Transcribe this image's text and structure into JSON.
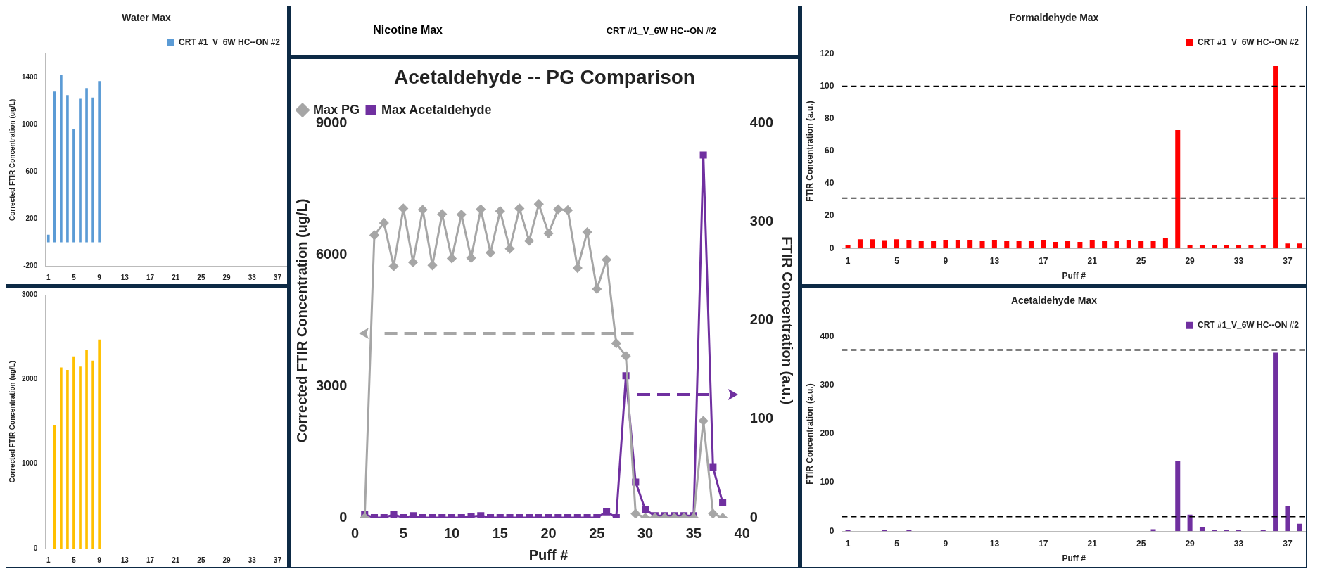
{
  "chart_data": [
    {
      "type": "bar",
      "title": "Water Max",
      "ylabel": "Corrected FTIR Concentration (ug/L)",
      "legend": "top right",
      "categories": [
        "1",
        null,
        null,
        null,
        "5",
        null,
        null,
        null,
        "9",
        null,
        null,
        null,
        "13",
        null,
        null,
        null,
        "17",
        null,
        null,
        null,
        "21",
        null,
        null,
        null,
        "25",
        null,
        null,
        null,
        "29",
        null,
        null,
        null,
        "33",
        null,
        null,
        null,
        "37",
        null
      ],
      "series": [
        {
          "name": "CRT #1_V_6W HC--ON #2",
          "color": "#5b9bd5",
          "values": [
            64,
            1280,
            1420,
            1250,
            960,
            1220,
            1310,
            1230,
            1370,
            null,
            null,
            null,
            null,
            null,
            null,
            null,
            null,
            null,
            null,
            null,
            null,
            null,
            null,
            null,
            null,
            null,
            null,
            null,
            null,
            null,
            null,
            null,
            null,
            null,
            null,
            null,
            null,
            null
          ]
        }
      ],
      "ylim": [
        -200,
        1600
      ],
      "yticks": [
        -200,
        200,
        600,
        1000,
        1400
      ]
    },
    {
      "type": "bar",
      "ylabel": "Corrected FTIR Concentration (ug/L)",
      "categories": [
        "1",
        null,
        null,
        null,
        "5",
        null,
        null,
        null,
        "9",
        null,
        null,
        null,
        "13",
        null,
        null,
        null,
        "17",
        null,
        null,
        null,
        "21",
        null,
        null,
        null,
        "25",
        null,
        null,
        null,
        "29",
        null,
        null,
        null,
        "33",
        null,
        null,
        null,
        "37",
        null
      ],
      "series": [
        {
          "color": "#ffc000",
          "values": [
            0,
            1460,
            2140,
            2110,
            2270,
            2150,
            2350,
            2220,
            2470,
            null,
            null,
            null,
            null,
            null,
            null,
            null,
            null,
            null,
            null,
            null,
            null,
            null,
            null,
            null,
            null,
            null,
            null,
            null,
            null,
            null,
            null,
            null,
            null,
            null,
            null,
            null,
            null,
            null
          ]
        }
      ],
      "ylim": [
        0,
        3000
      ],
      "yticks": [
        0,
        1000,
        2000,
        3000
      ]
    },
    {
      "type": "other",
      "title": "Nicotine Max",
      "annotations": [
        "CRT #1_V_6W HC--ON #2"
      ]
    },
    {
      "type": "line",
      "title": "Acetaldehyde -- PG Comparison",
      "xlabel": "Puff #",
      "ylabel": "Corrected FTIR Concentration (ug/L)",
      "y2label": "FTIR Concentration (a.u.)",
      "legend": "top left",
      "x": [
        1,
        2,
        3,
        4,
        5,
        6,
        7,
        8,
        9,
        10,
        11,
        12,
        13,
        14,
        15,
        16,
        17,
        18,
        19,
        20,
        21,
        22,
        23,
        24,
        25,
        26,
        27,
        28,
        29,
        30,
        31,
        32,
        33,
        34,
        35,
        36,
        37,
        38
      ],
      "series": [
        {
          "name": "Max PG",
          "color": "#a6a6a6",
          "marker": "diamond",
          "values": [
            0,
            6450,
            6730,
            5740,
            7060,
            5830,
            7030,
            5760,
            6930,
            5920,
            6920,
            5930,
            7040,
            6050,
            7000,
            6140,
            7060,
            6320,
            7160,
            6490,
            7040,
            7020,
            5700,
            6520,
            5220,
            5890,
            3980,
            3690,
            90,
            0,
            0,
            0,
            0,
            0,
            0,
            2210,
            90,
            0
          ]
        },
        {
          "name": "Max Acetaldehyde",
          "color": "#7030a0",
          "marker": "square",
          "axis": "y2",
          "values": [
            3,
            0,
            0,
            3,
            0,
            2,
            0,
            0,
            0,
            0,
            0,
            1,
            2,
            0,
            0,
            0,
            0,
            0,
            0,
            0,
            0,
            0,
            0,
            0,
            0,
            6,
            0,
            144,
            36,
            8,
            2,
            2,
            2,
            2,
            2,
            368,
            51,
            15
          ]
        }
      ],
      "xlim": [
        0,
        40
      ],
      "xticks": [
        0,
        5,
        10,
        15,
        20,
        25,
        30,
        35,
        40
      ],
      "ylim": [
        0,
        9000
      ],
      "yticks": [
        0,
        3000,
        6000,
        9000
      ],
      "y2lim": [
        0,
        400
      ],
      "y2ticks": [
        0,
        100,
        200,
        300,
        400
      ]
    },
    {
      "type": "bar",
      "title": "Formaldehyde Max",
      "xlabel": "Puff #",
      "ylabel": "FTIR Concentration (a.u.)",
      "legend": "top right",
      "categories": [
        "1",
        null,
        null,
        null,
        "5",
        null,
        null,
        null,
        "9",
        null,
        null,
        null,
        "13",
        null,
        null,
        null,
        "17",
        null,
        null,
        null,
        "21",
        null,
        null,
        null,
        "25",
        null,
        null,
        null,
        "29",
        null,
        null,
        null,
        "33",
        null,
        null,
        null,
        "37",
        null
      ],
      "series": [
        {
          "name": "CRT #1_V_6W HC--ON #2",
          "color": "#ff0000",
          "values": [
            2,
            5.6,
            5.6,
            5.1,
            5.6,
            5.3,
            4.6,
            4.6,
            5.3,
            5.3,
            5.3,
            4.8,
            5.3,
            4.4,
            4.8,
            4.4,
            5.3,
            4.0,
            4.8,
            4.0,
            5.3,
            4.4,
            4.4,
            5.3,
            4.4,
            4.4,
            6.3,
            73,
            2,
            2,
            2,
            2,
            2,
            2,
            2,
            112.5,
            3,
            3
          ]
        }
      ],
      "ylim": [
        0,
        120
      ],
      "yticks": [
        0,
        20,
        40,
        60,
        80,
        100,
        120
      ],
      "ref_lines": [
        {
          "axis": "y",
          "value": 100,
          "color": "#000000",
          "line_style": "dashed"
        },
        {
          "axis": "y",
          "value": 31,
          "color": "#404040",
          "line_style": "dashed"
        }
      ]
    },
    {
      "type": "bar",
      "title": "Acetaldehyde Max",
      "xlabel": "Puff #",
      "ylabel": "FTIR Concentration (a.u.)",
      "legend": "top right",
      "categories": [
        "1",
        null,
        null,
        null,
        "5",
        null,
        null,
        null,
        "9",
        null,
        null,
        null,
        "13",
        null,
        null,
        null,
        "17",
        null,
        null,
        null,
        "21",
        null,
        null,
        null,
        "25",
        null,
        null,
        null,
        "29",
        null,
        null,
        null,
        "33",
        null,
        null,
        null,
        "37",
        null
      ],
      "series": [
        {
          "name": "CRT #1_V_6W HC--ON #2",
          "color": "#7030a0",
          "values": [
            2,
            0,
            0,
            2,
            0,
            2,
            0,
            0,
            0,
            0,
            0,
            0,
            0,
            0,
            0,
            0,
            0,
            0,
            0,
            0,
            0,
            0,
            0,
            0,
            0,
            4,
            0,
            144,
            34,
            8,
            2,
            2,
            2,
            0,
            2,
            367,
            52,
            15
          ]
        }
      ],
      "ylim": [
        0,
        400
      ],
      "yticks": [
        0,
        100,
        200,
        300,
        400
      ],
      "ref_lines": [
        {
          "axis": "y",
          "value": 373,
          "color": "#000000",
          "line_style": "dashed"
        },
        {
          "axis": "y",
          "value": 30,
          "color": "#000000",
          "line_style": "dashed"
        }
      ]
    }
  ]
}
